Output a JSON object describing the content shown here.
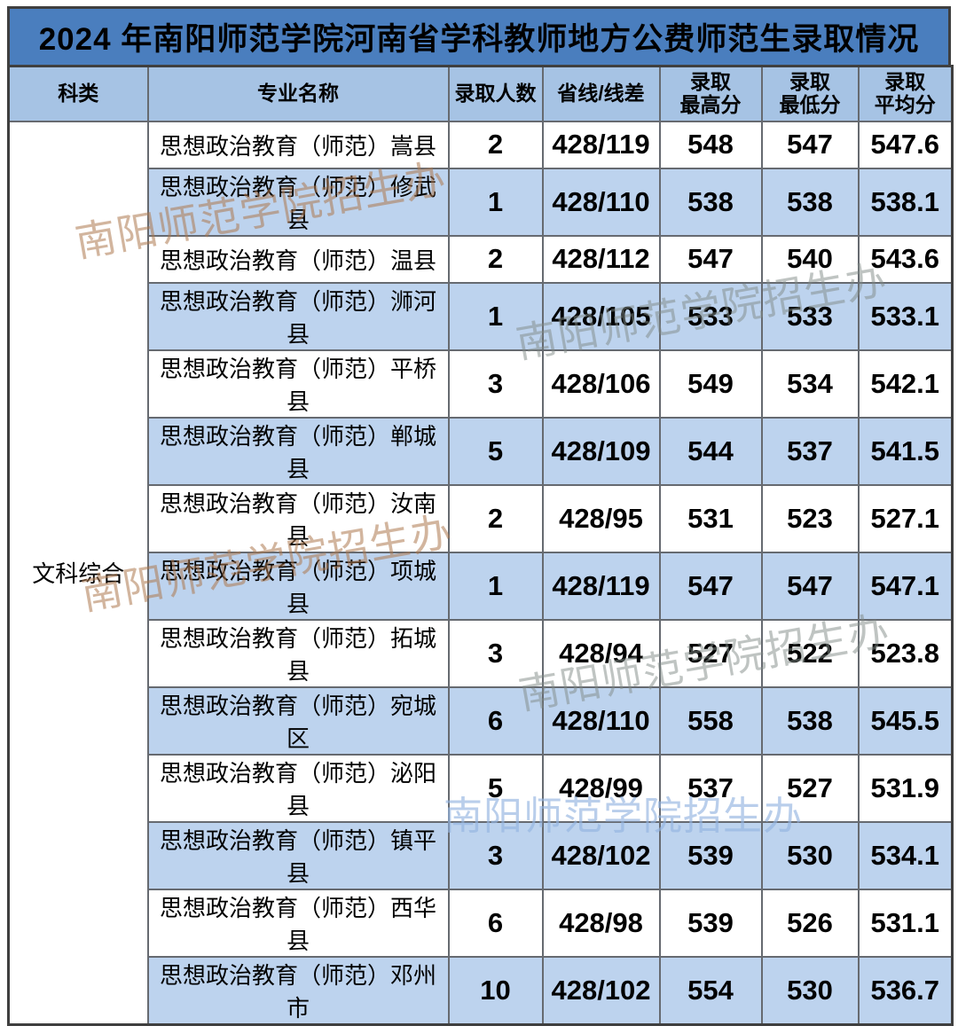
{
  "title": "2024 年南阳师范学院河南省学科教师地方公费师范生录取情况",
  "chart_data": {
    "type": "table",
    "title": "2024 年南阳师范学院河南省学科教师地方公费师范生录取情况",
    "columns": [
      "科类",
      "专业名称",
      "录取人数",
      "省线/线差",
      "录取\n最高分",
      "录取\n最低分",
      "录取\n平均分"
    ],
    "category": "文科综合",
    "rows": [
      {
        "major": "思想政治教育（师范）嵩县",
        "count": "2",
        "line": "428/119",
        "max": "548",
        "min": "547",
        "avg": "547.6"
      },
      {
        "major": "思想政治教育（师范）修武县",
        "count": "1",
        "line": "428/110",
        "max": "538",
        "min": "538",
        "avg": "538.1"
      },
      {
        "major": "思想政治教育（师范）温县",
        "count": "2",
        "line": "428/112",
        "max": "547",
        "min": "540",
        "avg": "543.6"
      },
      {
        "major": "思想政治教育（师范）浉河县",
        "count": "1",
        "line": "428/105",
        "max": "533",
        "min": "533",
        "avg": "533.1"
      },
      {
        "major": "思想政治教育（师范）平桥县",
        "count": "3",
        "line": "428/106",
        "max": "549",
        "min": "534",
        "avg": "542.1"
      },
      {
        "major": "思想政治教育（师范）郸城县",
        "count": "5",
        "line": "428/109",
        "max": "544",
        "min": "537",
        "avg": "541.5"
      },
      {
        "major": "思想政治教育（师范）汝南县",
        "count": "2",
        "line": "428/95",
        "max": "531",
        "min": "523",
        "avg": "527.1"
      },
      {
        "major": "思想政治教育（师范）项城县",
        "count": "1",
        "line": "428/119",
        "max": "547",
        "min": "547",
        "avg": "547.1"
      },
      {
        "major": "思想政治教育（师范）拓城县",
        "count": "3",
        "line": "428/94",
        "max": "527",
        "min": "522",
        "avg": "523.8"
      },
      {
        "major": "思想政治教育（师范）宛城区",
        "count": "6",
        "line": "428/110",
        "max": "558",
        "min": "538",
        "avg": "545.5"
      },
      {
        "major": "思想政治教育（师范）泌阳县",
        "count": "5",
        "line": "428/99",
        "max": "537",
        "min": "527",
        "avg": "531.9"
      },
      {
        "major": "思想政治教育（师范）镇平县",
        "count": "3",
        "line": "428/102",
        "max": "539",
        "min": "530",
        "avg": "534.1"
      },
      {
        "major": "思想政治教育（师范）西华县",
        "count": "6",
        "line": "428/98",
        "max": "539",
        "min": "526",
        "avg": "531.1"
      },
      {
        "major": "思想政治教育（师范）邓州市",
        "count": "10",
        "line": "428/102",
        "max": "554",
        "min": "530",
        "avg": "536.7"
      }
    ]
  },
  "watermarks": [
    {
      "text": "南阳师范学院招生办",
      "color": "rgba(173,121,79,0.55)"
    },
    {
      "text": "南阳师范学院招生办",
      "color": "rgba(128,137,133,0.50)"
    },
    {
      "text": "南阳师范学院招生办",
      "color": "rgba(173,121,79,0.55)"
    },
    {
      "text": "南阳师范学院招生办",
      "color": "rgba(128,137,133,0.50)"
    },
    {
      "text": "南阳师范学院招生办",
      "color": "rgba(148,180,224,0.65)"
    }
  ],
  "colors": {
    "title_bar_bg": "#4a7ebe",
    "header_bg": "#a6c3e4",
    "band_row_bg": "#bdd3ee",
    "grid_border": "#666a70",
    "text": "#000000"
  }
}
